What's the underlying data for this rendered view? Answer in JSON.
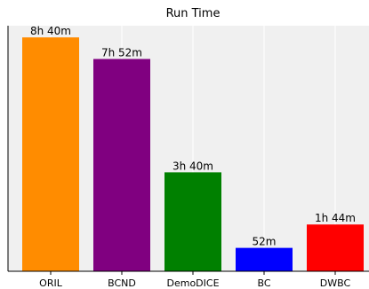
{
  "chart_data": {
    "type": "bar",
    "title": "Run Time",
    "xlabel": "",
    "ylabel": "",
    "categories": [
      "ORIL",
      "BCND",
      "DemoDICE",
      "BC",
      "DWBC"
    ],
    "values": [
      520,
      472,
      220,
      52,
      104
    ],
    "value_unit": "minutes",
    "data_labels": [
      "8h 40m",
      "7h 52m",
      "3h 40m",
      "52m",
      "1h 44m"
    ],
    "colors": [
      "#ff8c00",
      "#800080",
      "#008000",
      "#0000ff",
      "#ff0000"
    ],
    "ylim": [
      0,
      546
    ],
    "y_axis_visible": false,
    "grid": "vertical",
    "background_color": "#f0f0f0",
    "grid_color": "#ffffff"
  }
}
